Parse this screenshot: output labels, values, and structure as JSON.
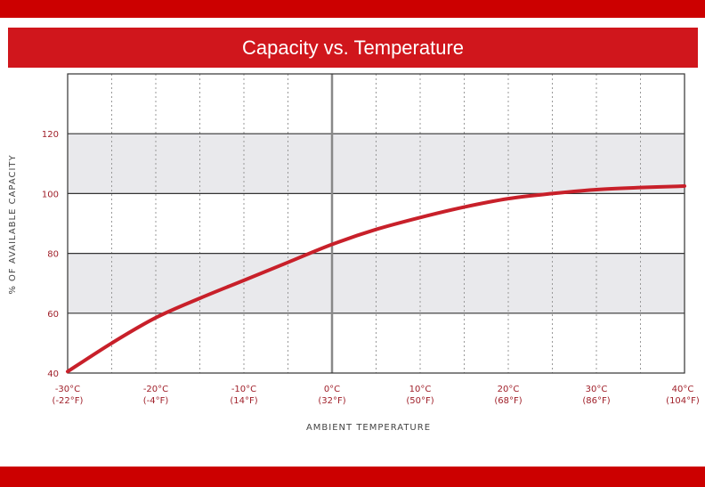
{
  "chart_data": {
    "type": "line",
    "title": "Capacity vs. Temperature",
    "xlabel": "AMBIENT TEMPERATURE",
    "ylabel": "% OF AVAILABLE CAPACITY",
    "xlim": [
      -30,
      40
    ],
    "ylim": [
      40,
      140
    ],
    "yticks": [
      40,
      60,
      80,
      100,
      120
    ],
    "xticks": [
      {
        "value": -30,
        "c": "-30°C",
        "f": "(-22°F)"
      },
      {
        "value": -20,
        "c": "-20°C",
        "f": "(-4°F)"
      },
      {
        "value": -10,
        "c": "-10°C",
        "f": "(14°F)"
      },
      {
        "value": 0,
        "c": "0°C",
        "f": "(32°F)"
      },
      {
        "value": 10,
        "c": "10°C",
        "f": "(50°F)"
      },
      {
        "value": 20,
        "c": "20°C",
        "f": "(68°F)"
      },
      {
        "value": 30,
        "c": "30°C",
        "f": "(86°F)"
      },
      {
        "value": 40,
        "c": "40°C",
        "f": "(104°F)"
      }
    ],
    "shaded_bands": [
      [
        60,
        80
      ],
      [
        100,
        120
      ]
    ],
    "series": [
      {
        "name": "Capacity",
        "color": "#c8202a",
        "x": [
          -30,
          -25,
          -20,
          -15,
          -10,
          -5,
          0,
          5,
          10,
          15,
          20,
          25,
          30,
          35,
          40
        ],
        "y": [
          40.5,
          50,
          58.5,
          65,
          71,
          77,
          83,
          88,
          92,
          95.5,
          98.3,
          100,
          101.3,
          102,
          102.5
        ]
      }
    ]
  }
}
